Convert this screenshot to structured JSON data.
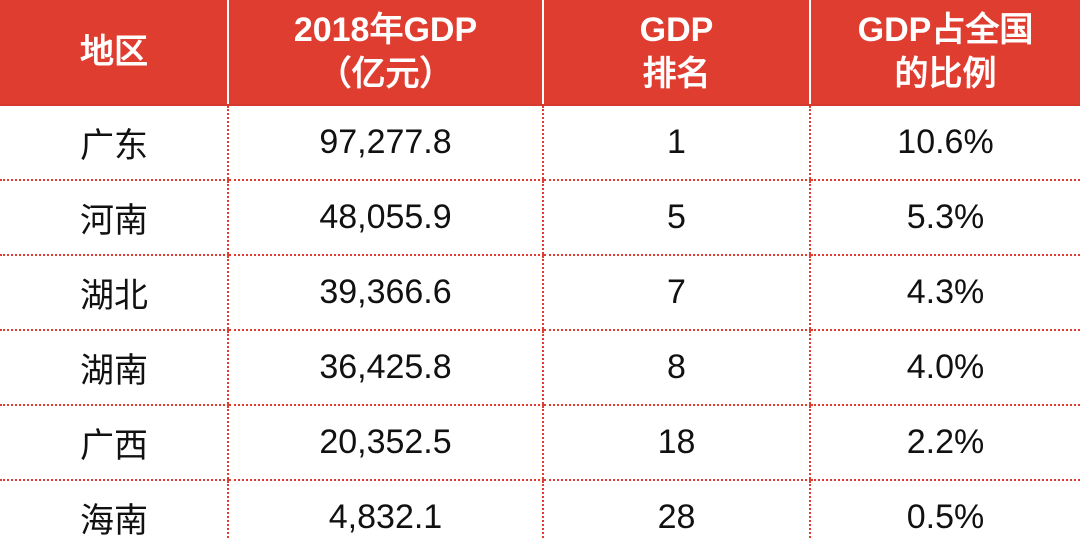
{
  "chart_data": {
    "type": "table",
    "columns": [
      {
        "lines": [
          "地区"
        ]
      },
      {
        "lines": [
          "2018年GDP",
          "（亿元）"
        ]
      },
      {
        "lines": [
          "GDP",
          "排名"
        ]
      },
      {
        "lines": [
          "GDP占全国",
          "的比例"
        ]
      }
    ],
    "rows": [
      {
        "region": "广东",
        "gdp": "97,277.8",
        "rank": "1",
        "share": "10.6%"
      },
      {
        "region": "河南",
        "gdp": "48,055.9",
        "rank": "5",
        "share": "5.3%"
      },
      {
        "region": "湖北",
        "gdp": "39,366.6",
        "rank": "7",
        "share": "4.3%"
      },
      {
        "region": "湖南",
        "gdp": "36,425.8",
        "rank": "8",
        "share": "4.0%"
      },
      {
        "region": "广西",
        "gdp": "20,352.5",
        "rank": "18",
        "share": "2.2%"
      },
      {
        "region": "海南",
        "gdp": "4,832.1",
        "rank": "28",
        "share": "0.5%"
      }
    ],
    "colors": {
      "header_bg": "#e03d31",
      "header_text": "#ffffff",
      "grid": "#e03d31",
      "cell_text": "#111111"
    }
  }
}
